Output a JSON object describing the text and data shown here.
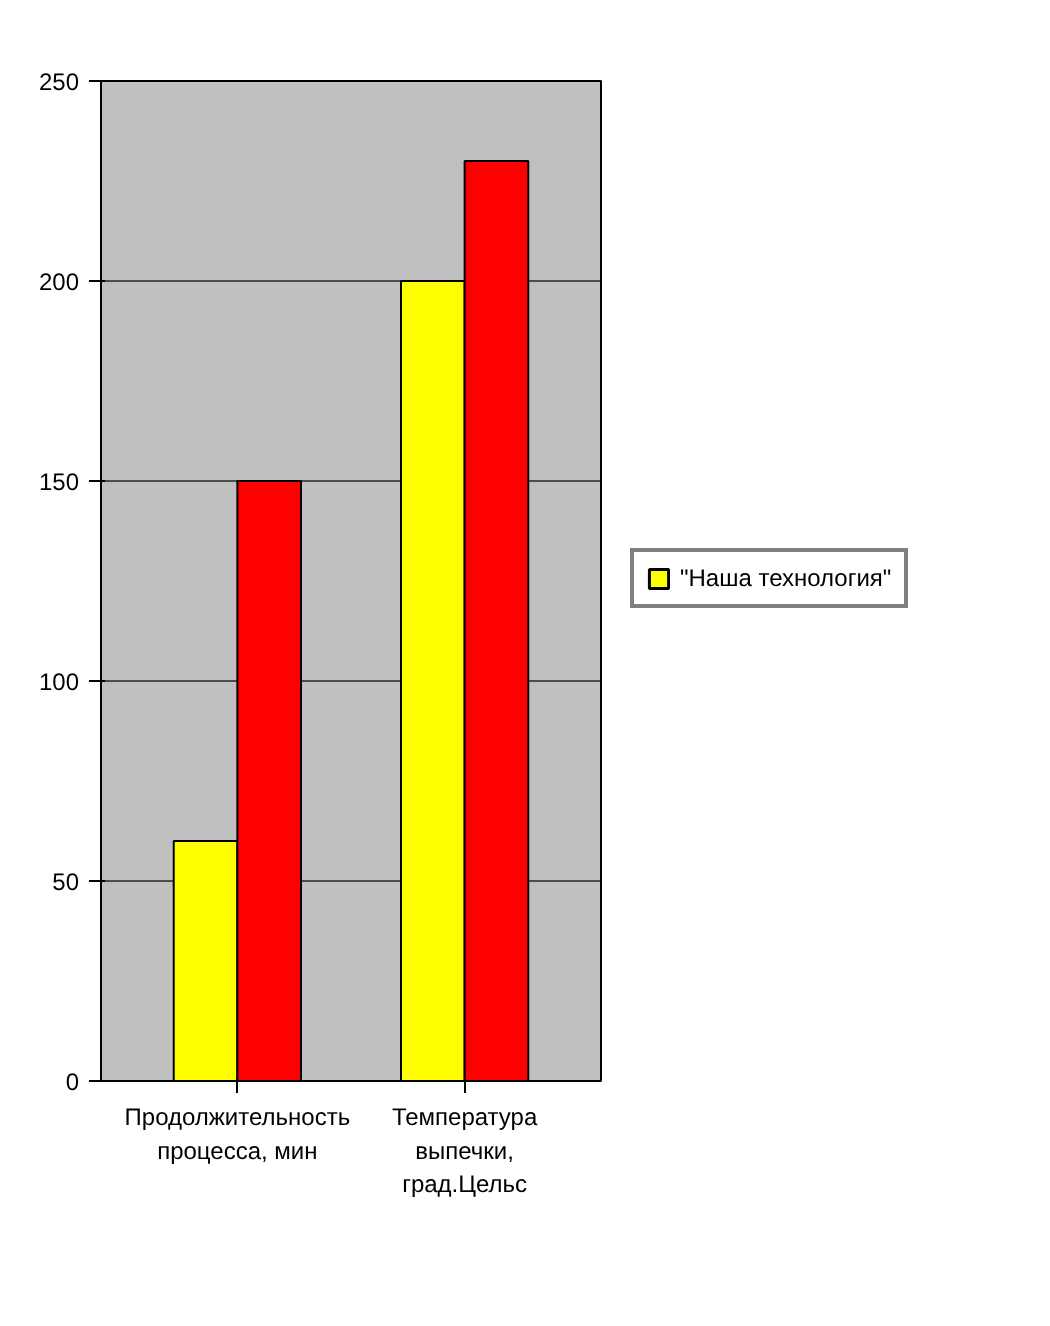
{
  "chart_data": {
    "type": "bar",
    "categories": [
      "Продолжительность процесса, мин",
      "Температура выпечки, град.Цельс"
    ],
    "series": [
      {
        "name": "\"Наша технология\"",
        "color": "#ffff00",
        "values": [
          60,
          200
        ]
      },
      {
        "color": "#ff0000",
        "values": [
          150,
          230
        ]
      }
    ],
    "ylim": [
      0,
      250
    ],
    "yticks": [
      0,
      50,
      100,
      150,
      200,
      250
    ],
    "grid": "y",
    "legend": "right"
  }
}
